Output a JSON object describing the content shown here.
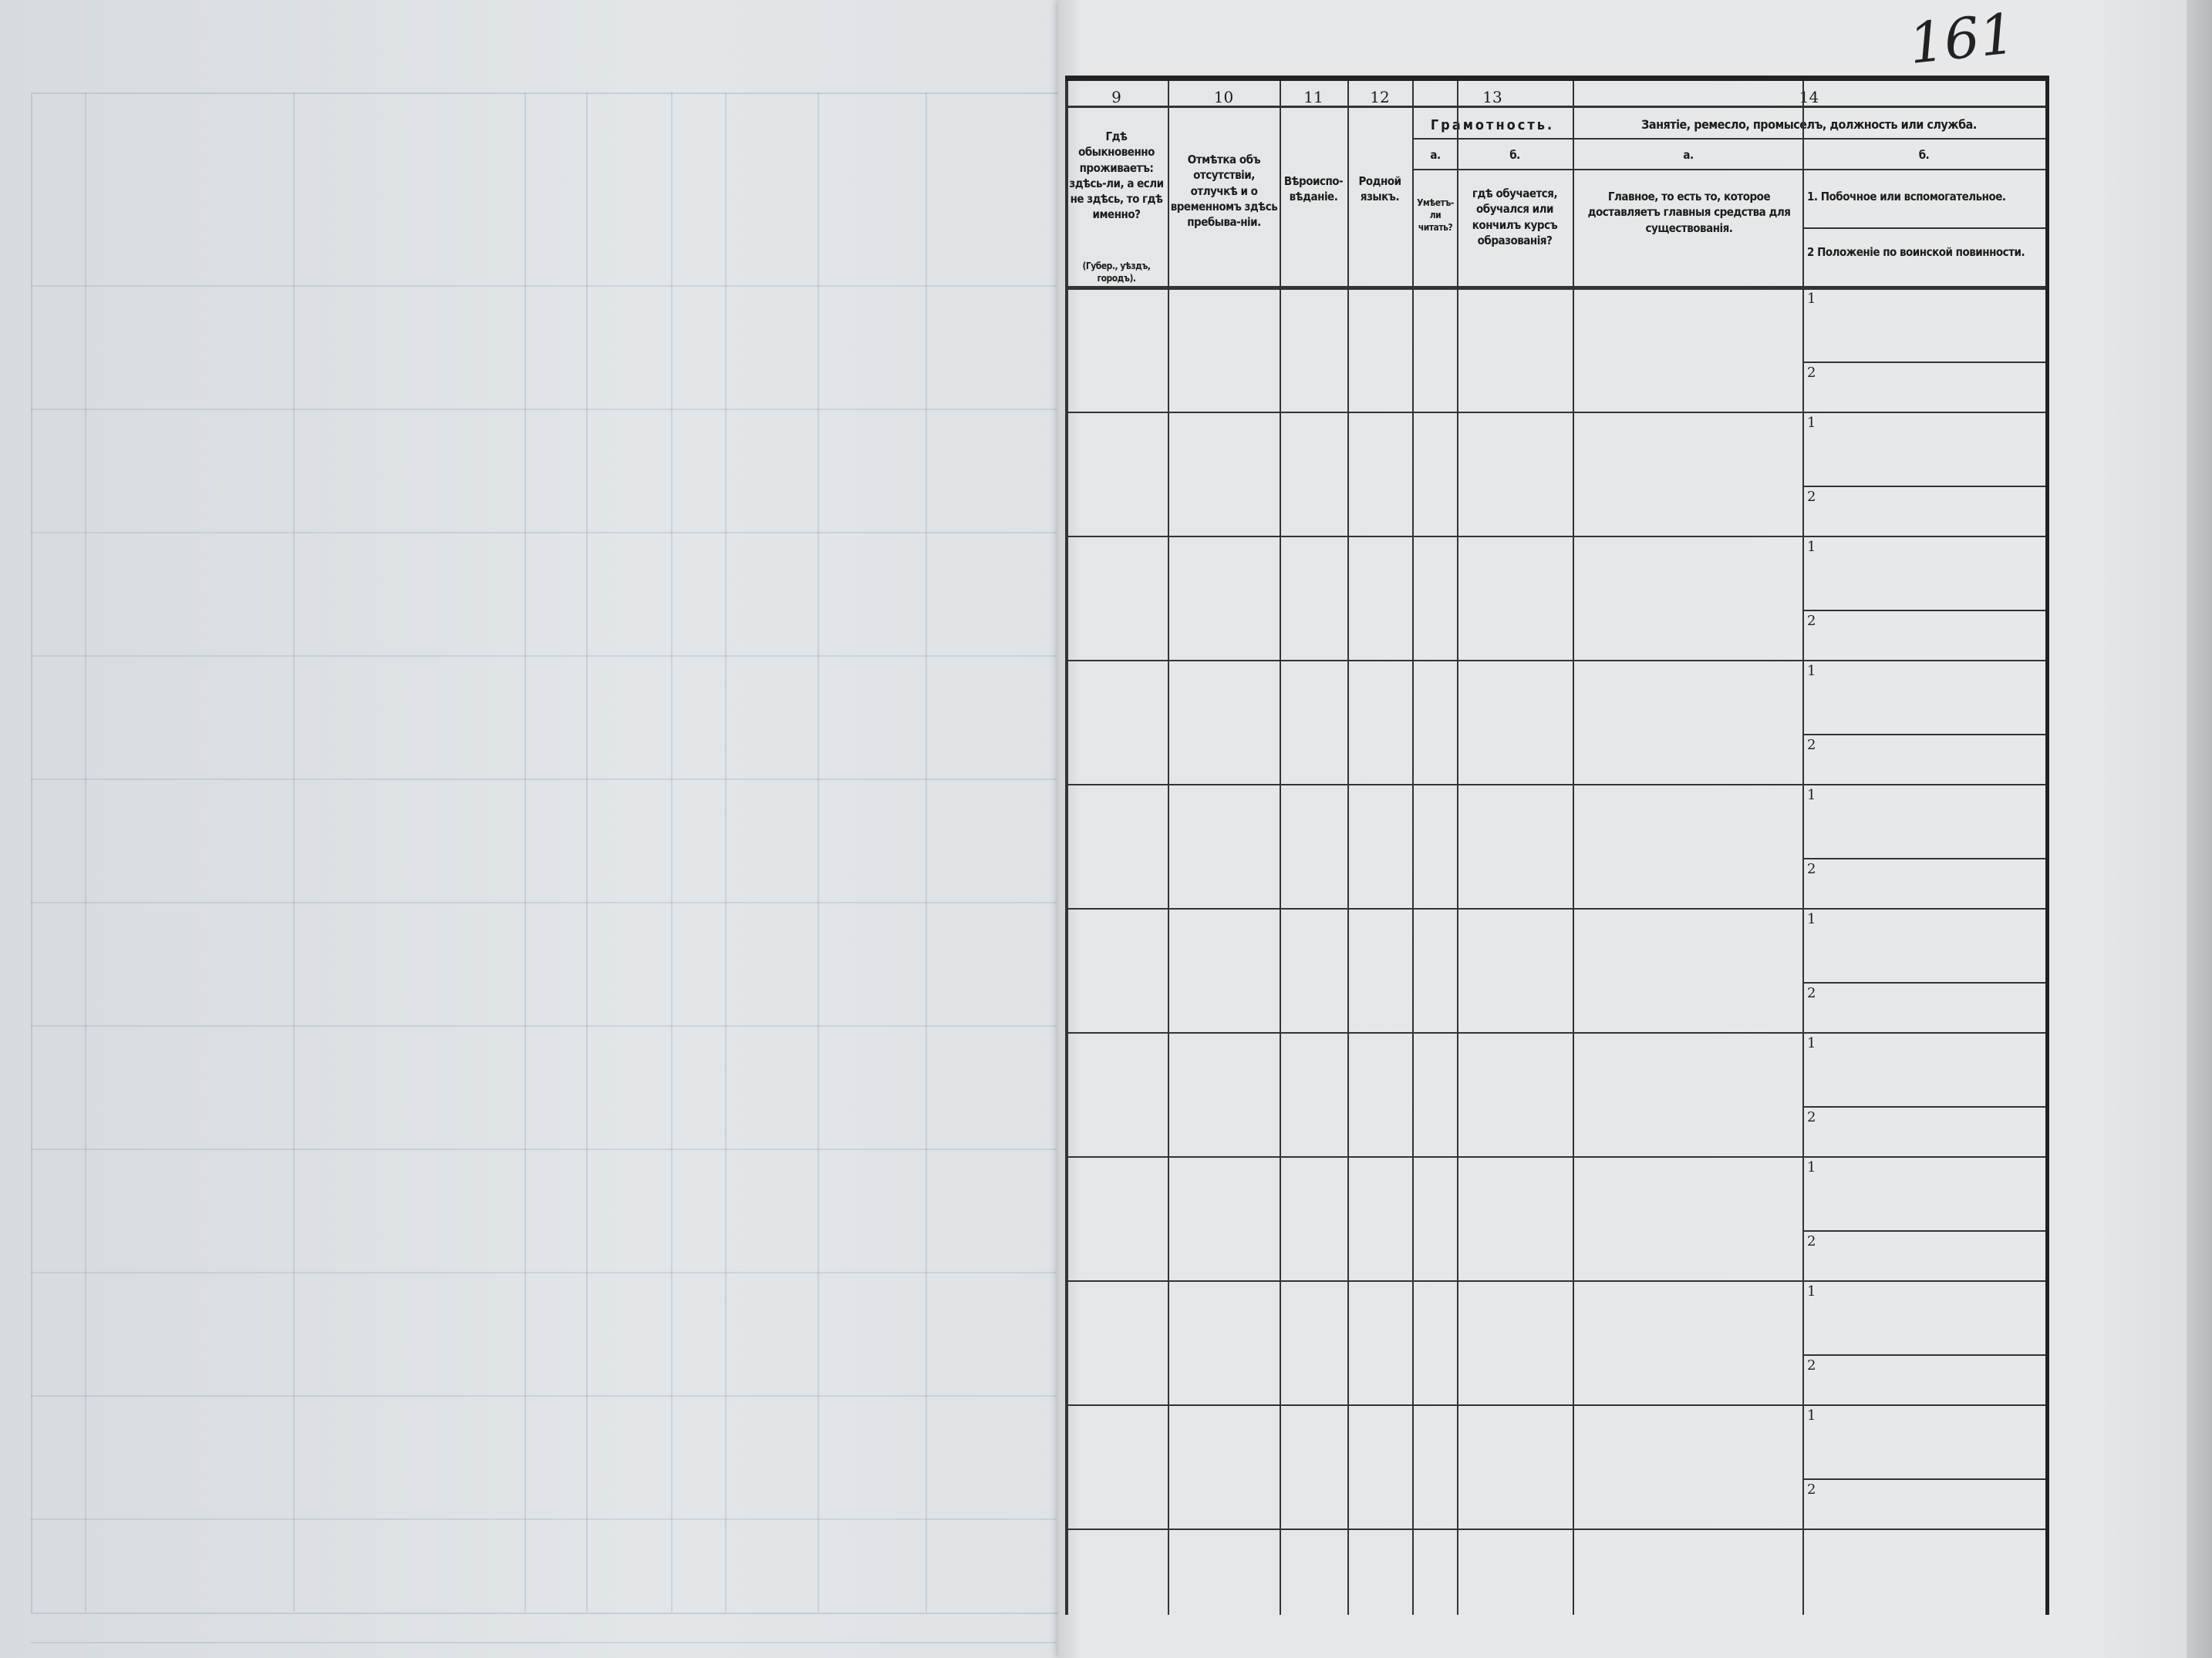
{
  "page_number": "161",
  "header": {
    "col9": {
      "number": "9",
      "text": "Гдѣ обыкновенно проживаетъ: здѣсь-ли, а если не здѣсь, то гдѣ именно?",
      "note": "(Губер., уѣздъ, городъ)."
    },
    "col10": {
      "number": "10",
      "text": "Отмѣтка объ отсутствіи, отлучкѣ и о временномъ здѣсь пребыва-ніи."
    },
    "col11": {
      "number": "11",
      "text": "Вѣроиспо-вѣданіе."
    },
    "col12": {
      "number": "12",
      "text": "Родной языкъ."
    },
    "col13": {
      "number": "13",
      "title": "Грамотность.",
      "a_label": "а.",
      "a_text": "Умѣетъ-ли читать?",
      "b_label": "б.",
      "b_text": "гдѣ обучается, обучался или кончилъ курсъ образованія?"
    },
    "col14": {
      "number": "14",
      "title": "Занятіе, ремесло, промыселъ, должность или служба.",
      "a_label": "а.",
      "a_text": "Главное, то есть то, которое доставляетъ главныя средства для существованія.",
      "b_label": "б.",
      "b_1": "1. Побочное или вспомогательное.",
      "b_2": "2 Положеніе по воинской повинности."
    }
  },
  "row_sub_labels": [
    "1",
    "2"
  ]
}
